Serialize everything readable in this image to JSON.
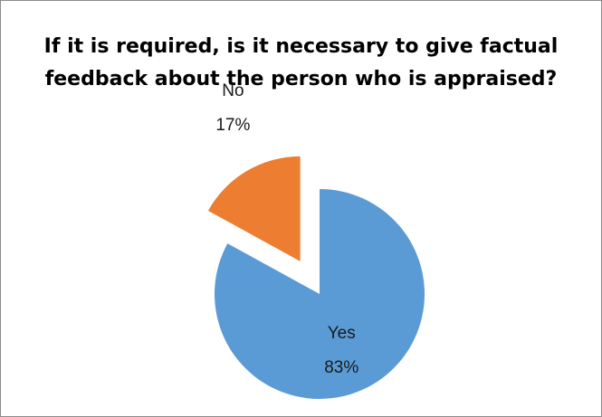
{
  "chart_data": {
    "type": "pie",
    "title": "If it is required, is it necessary to give factual feedback about the person who is appraised?",
    "title_lines": [
      "If it is required, is it necessary to give factual",
      "feedback about the person who is appraised?"
    ],
    "slices": [
      {
        "name": "Yes",
        "value": 83,
        "label": "83%",
        "color": "#5B9BD5",
        "exploded": false
      },
      {
        "name": "No",
        "value": 17,
        "label": "17%",
        "color": "#ED7D31",
        "exploded": true
      }
    ],
    "start_angle_deg": 0,
    "direction": "clockwise",
    "legend": "none"
  }
}
